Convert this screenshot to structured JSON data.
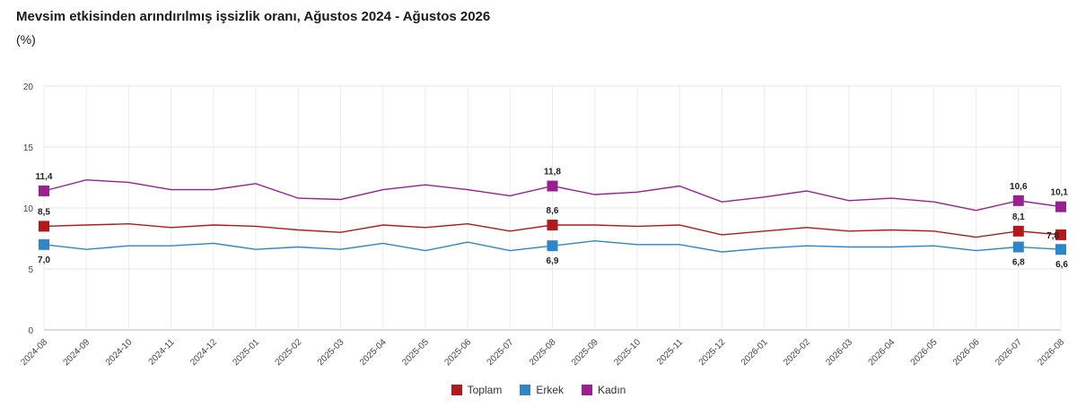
{
  "chart_data": {
    "type": "line",
    "title": "Mevsim etkisinden arındırılmış işsizlik oranı, Ağustos 2024 - Ağustos 2026",
    "subtitle": "(%)",
    "categories": [
      "2024-08",
      "2024-09",
      "2024-10",
      "2024-11",
      "2024-12",
      "2025-01",
      "2025-02",
      "2025-03",
      "2025-04",
      "2025-05",
      "2025-06",
      "2025-07",
      "2025-08",
      "2025-09",
      "2025-10",
      "2025-11",
      "2025-12",
      "2026-01",
      "2026-02",
      "2026-03",
      "2026-04",
      "2026-05",
      "2026-06",
      "2026-07",
      "2026-08"
    ],
    "ylim": [
      0,
      20
    ],
    "yticks": [
      0,
      5,
      10,
      15,
      20
    ],
    "grid": true,
    "legend_position": "bottom",
    "series": [
      {
        "name": "Toplam",
        "color": "#b3191b",
        "values": [
          8.5,
          8.6,
          8.7,
          8.4,
          8.6,
          8.5,
          8.2,
          8.0,
          8.6,
          8.4,
          8.7,
          8.1,
          8.6,
          8.6,
          8.5,
          8.6,
          7.8,
          8.1,
          8.4,
          8.1,
          8.2,
          8.1,
          7.6,
          8.1,
          7.8
        ]
      },
      {
        "name": "Erkek",
        "color": "#2e86c8",
        "values": [
          7.0,
          6.6,
          6.9,
          6.9,
          7.1,
          6.6,
          6.8,
          6.6,
          7.1,
          6.5,
          7.2,
          6.5,
          6.9,
          7.3,
          7.0,
          7.0,
          6.4,
          6.7,
          6.9,
          6.8,
          6.8,
          6.9,
          6.5,
          6.8,
          6.6
        ]
      },
      {
        "name": "Kadın",
        "color": "#9a2090",
        "values": [
          11.4,
          12.3,
          12.1,
          11.5,
          11.5,
          12.0,
          10.8,
          10.7,
          11.5,
          11.9,
          11.5,
          11.0,
          11.8,
          11.1,
          11.3,
          11.8,
          10.5,
          10.9,
          11.4,
          10.6,
          10.8,
          10.5,
          9.8,
          10.6,
          10.1
        ]
      }
    ],
    "markers_at": [
      0,
      12,
      23,
      24
    ],
    "data_labels": [
      {
        "series": 2,
        "index": 0,
        "text": "11,4"
      },
      {
        "series": 0,
        "index": 0,
        "text": "8,5"
      },
      {
        "series": 1,
        "index": 0,
        "text": "7,0"
      },
      {
        "series": 2,
        "index": 12,
        "text": "11,8"
      },
      {
        "series": 0,
        "index": 12,
        "text": "8,6"
      },
      {
        "series": 1,
        "index": 12,
        "text": "6,9"
      },
      {
        "series": 2,
        "index": 23,
        "text": "10,6"
      },
      {
        "series": 0,
        "index": 23,
        "text": "8,1"
      },
      {
        "series": 1,
        "index": 23,
        "text": "6,8"
      },
      {
        "series": 2,
        "index": 24,
        "text": "10,1"
      },
      {
        "series": 0,
        "index": 24,
        "text": "7,8"
      },
      {
        "series": 1,
        "index": 24,
        "text": "6,6"
      }
    ]
  }
}
